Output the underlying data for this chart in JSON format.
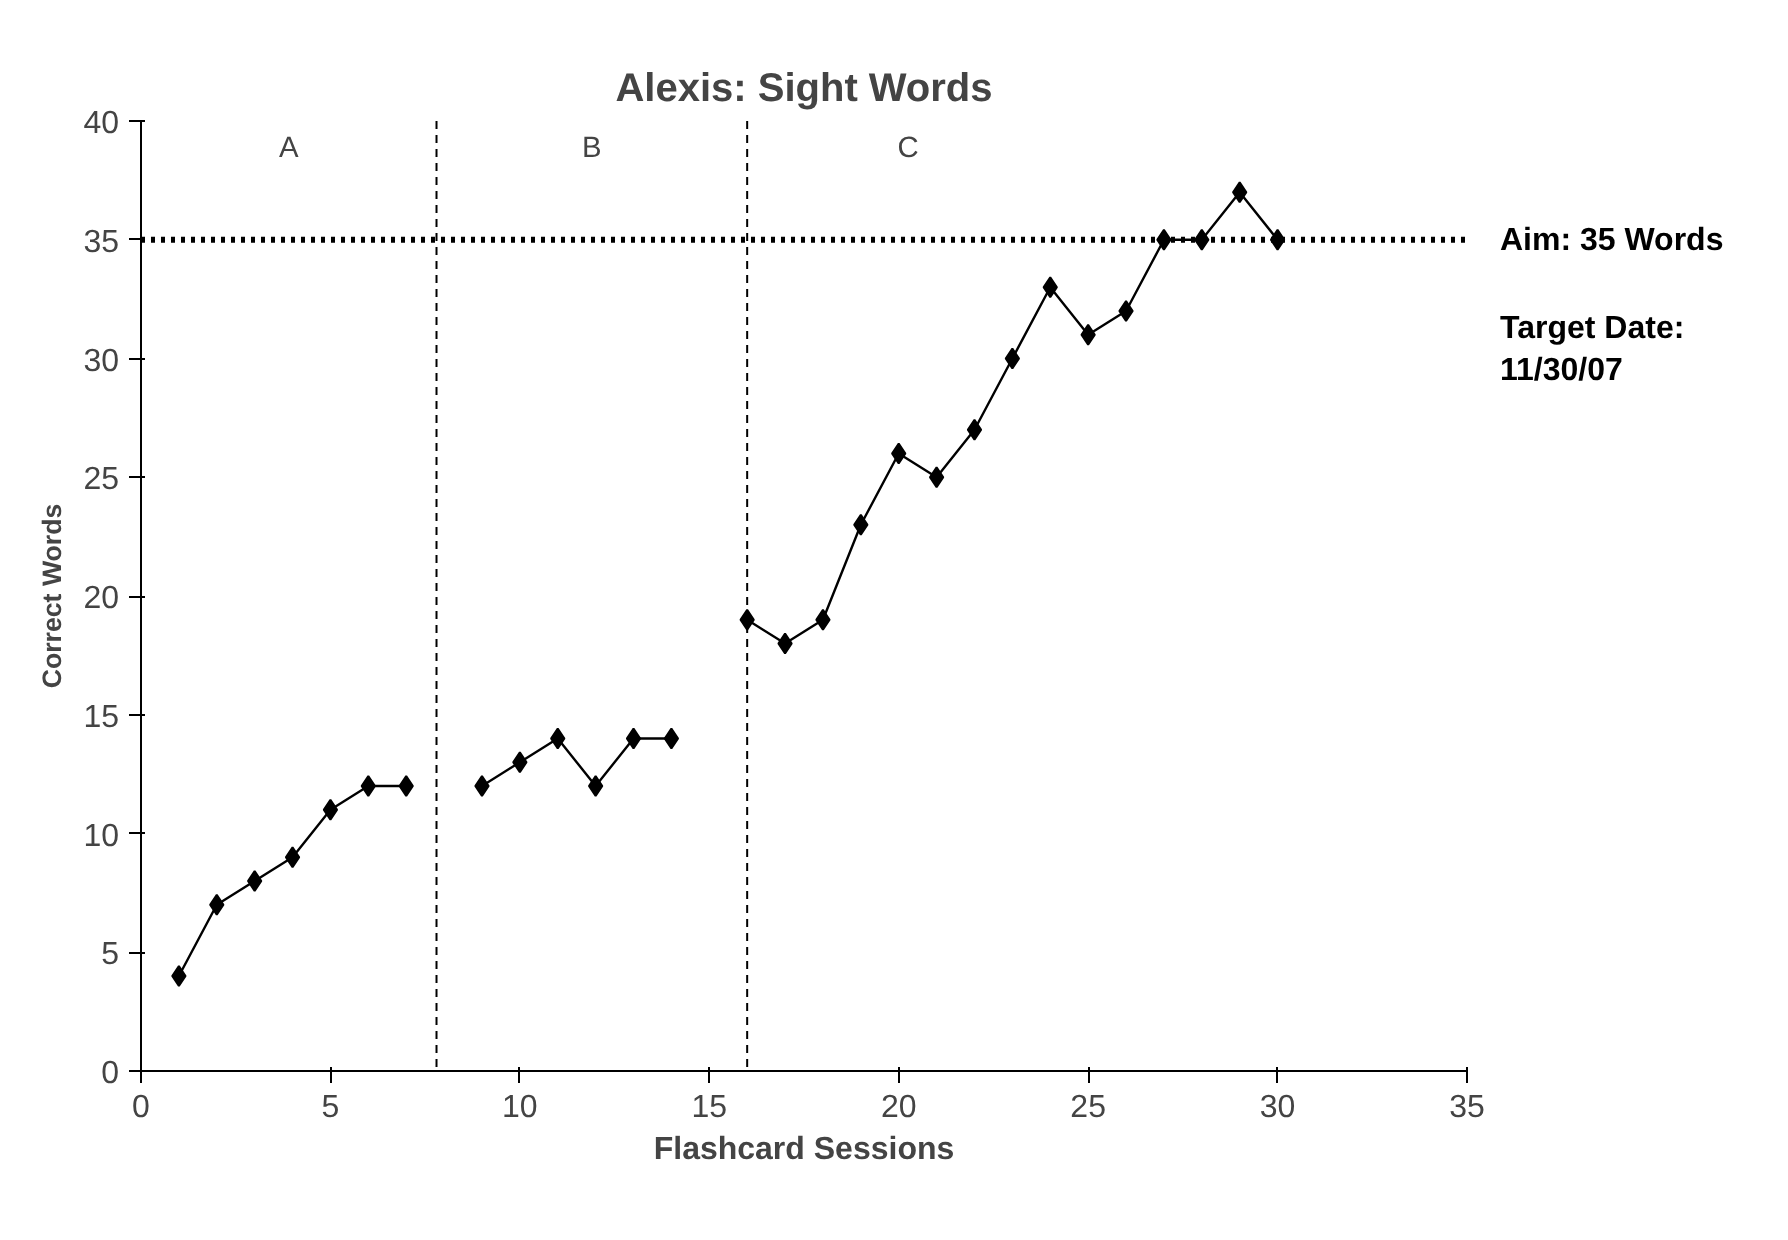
{
  "chart_data": {
    "type": "line",
    "title": "Alexis: Sight Words",
    "xlabel": "Flashcard Sessions",
    "ylabel": "Correct Words",
    "x": [
      1,
      2,
      3,
      4,
      5,
      6,
      7,
      8,
      9,
      10,
      11,
      12,
      13,
      14,
      15,
      16,
      17,
      18,
      19,
      20,
      21,
      22,
      23,
      24,
      25,
      26,
      27,
      28,
      29,
      30
    ],
    "series": [
      {
        "color": "#000000",
        "values": [
          4,
          7,
          8,
          9,
          11,
          12,
          12,
          null,
          12,
          13,
          14,
          12,
          14,
          14,
          null,
          19,
          18,
          19,
          23,
          26,
          25,
          27,
          30,
          33,
          31,
          32,
          35,
          35,
          37,
          35
        ]
      }
    ],
    "marker": "diamond",
    "line_style": "solid",
    "grid": false,
    "xlim": [
      0,
      35
    ],
    "xticks": [
      0,
      5,
      10,
      15,
      20,
      25,
      30,
      35
    ],
    "ylim": [
      0,
      40
    ],
    "yticks": [
      0,
      5,
      10,
      15,
      20,
      25,
      30,
      35,
      40
    ],
    "ref_lines": [
      {
        "axis": "y",
        "value": 35,
        "label": "Aim: 35 Words",
        "line_style": "dotted",
        "color": "#000000"
      },
      {
        "axis": "x",
        "value": 7.8,
        "line_style": "dashed",
        "color": "#000000"
      },
      {
        "axis": "x",
        "value": 16,
        "line_style": "dashed",
        "color": "#000000"
      }
    ],
    "annotations": [
      "A",
      "B",
      "C",
      "Target Date:\n11/30/07"
    ]
  }
}
